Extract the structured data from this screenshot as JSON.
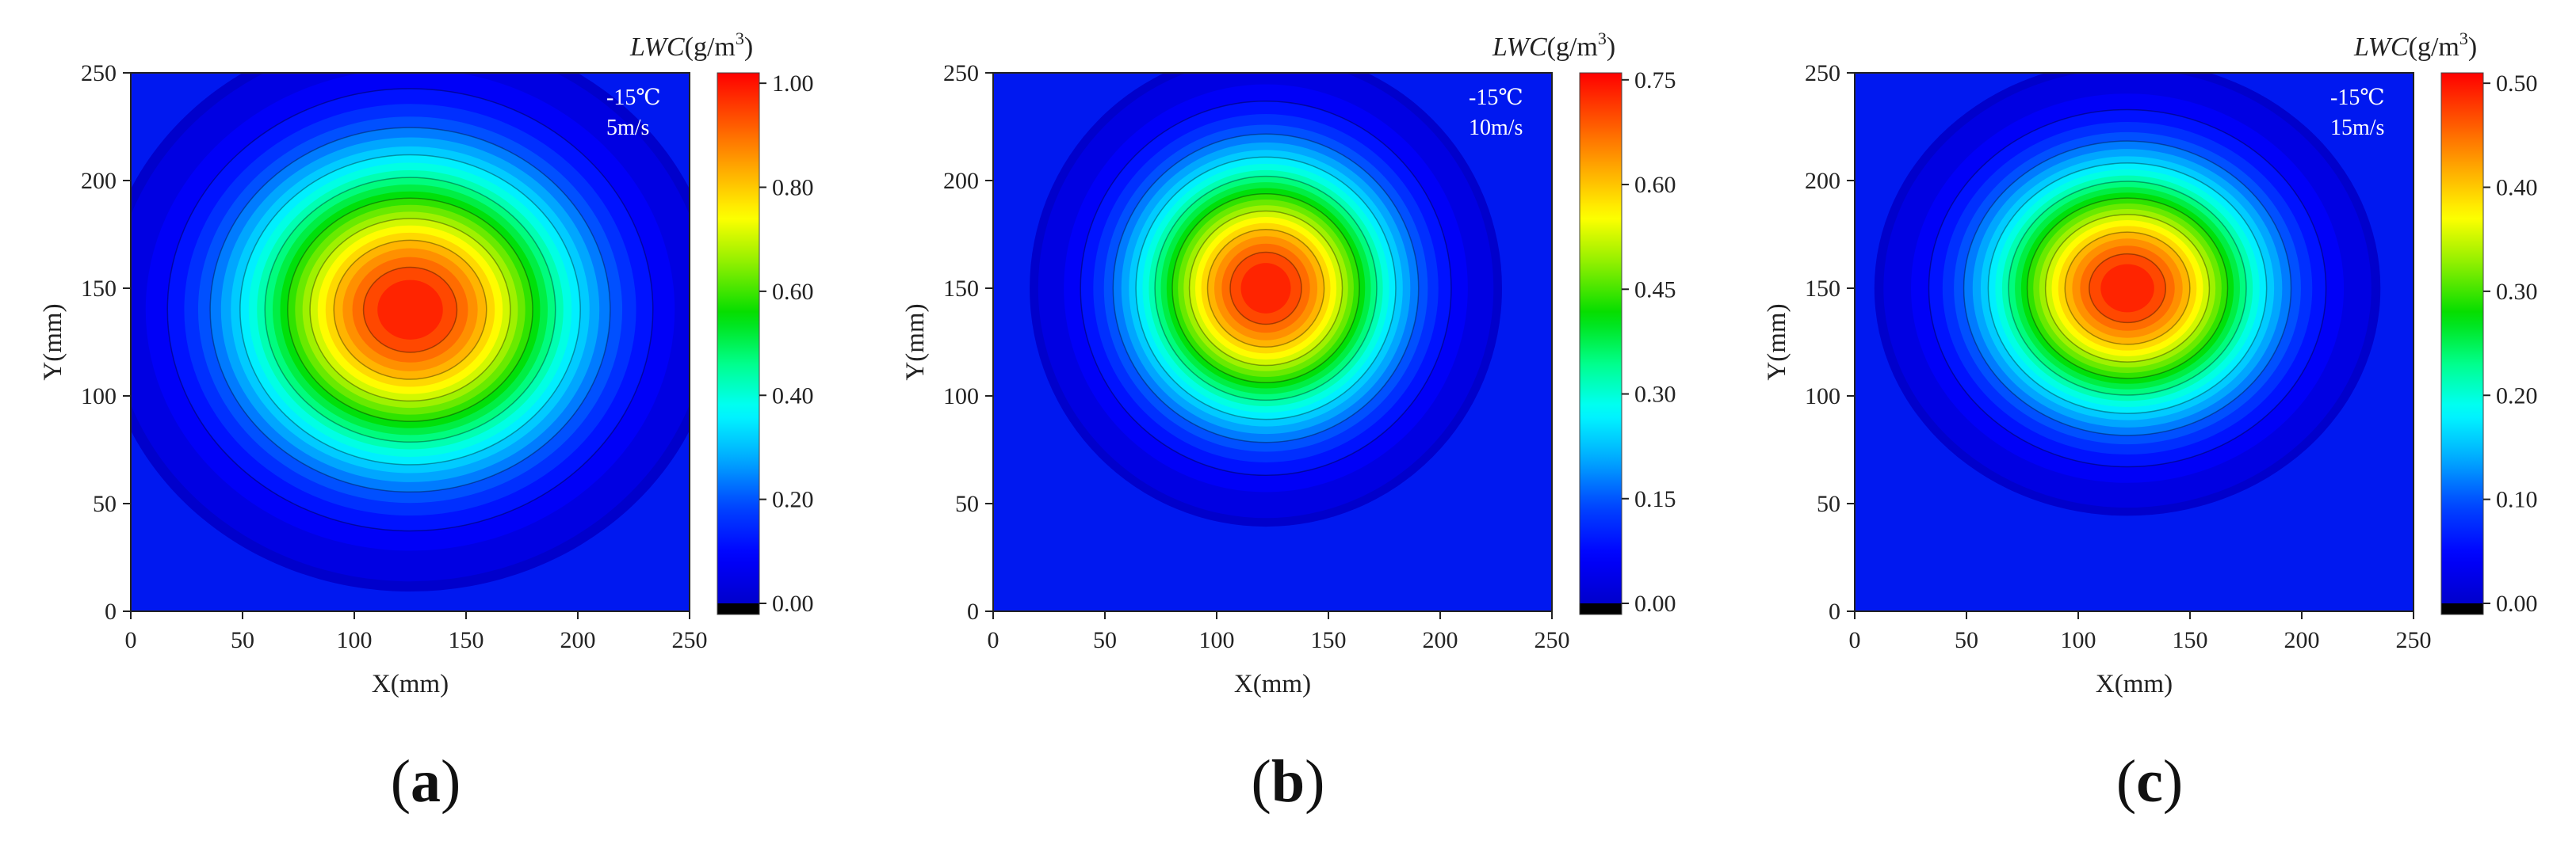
{
  "chart_data": [
    {
      "type": "heatmap",
      "panel_label": "a",
      "xlabel": "X(mm)",
      "ylabel": "Y(mm)",
      "xlim": [
        0,
        250
      ],
      "ylim": [
        0,
        250
      ],
      "xticks": [
        0,
        50,
        100,
        150,
        200,
        250
      ],
      "yticks": [
        0,
        50,
        100,
        150,
        200,
        250
      ],
      "colorbar_title_var": "LWC",
      "colorbar_title_unit": "(g/m",
      "colorbar_title_exp": "3",
      "colorbar_title_close": ")",
      "colorbar_range": [
        0,
        1.02
      ],
      "colorbar_ticks": [
        "0.00",
        "0.20",
        "0.40",
        "0.60",
        "0.80",
        "1.00"
      ],
      "colorbar_tick_values": [
        0,
        0.2,
        0.4,
        0.6,
        0.8,
        1.0
      ],
      "annotation": [
        "-15℃",
        "5m/s"
      ],
      "peak_value": 1.02,
      "peak_center": [
        125,
        140
      ],
      "spread": [
        55,
        52
      ]
    },
    {
      "type": "heatmap",
      "panel_label": "b",
      "xlabel": "X(mm)",
      "ylabel": "Y(mm)",
      "xlim": [
        0,
        250
      ],
      "ylim": [
        0,
        250
      ],
      "xticks": [
        0,
        50,
        100,
        150,
        200,
        250
      ],
      "yticks": [
        0,
        50,
        100,
        150,
        200,
        250
      ],
      "colorbar_title_var": "LWC",
      "colorbar_title_unit": "(g/m",
      "colorbar_title_exp": "3",
      "colorbar_title_close": ")",
      "colorbar_range": [
        0,
        0.76
      ],
      "colorbar_ticks": [
        "0.00",
        "0.15",
        "0.30",
        "0.45",
        "0.60",
        "0.75"
      ],
      "colorbar_tick_values": [
        0,
        0.15,
        0.3,
        0.45,
        0.6,
        0.75
      ],
      "annotation": [
        "-15℃",
        "10m/s"
      ],
      "peak_value": 0.76,
      "peak_center": [
        122,
        150
      ],
      "spread": [
        42,
        44
      ]
    },
    {
      "type": "heatmap",
      "panel_label": "c",
      "xlabel": "X(mm)",
      "ylabel": "Y(mm)",
      "xlim": [
        0,
        250
      ],
      "ylim": [
        0,
        250
      ],
      "xticks": [
        0,
        50,
        100,
        150,
        200,
        250
      ],
      "yticks": [
        0,
        50,
        100,
        150,
        200,
        250
      ],
      "colorbar_title_var": "LWC",
      "colorbar_title_unit": "(g/m",
      "colorbar_title_exp": "3",
      "colorbar_title_close": ")",
      "colorbar_range": [
        0,
        0.51
      ],
      "colorbar_ticks": [
        "0.00",
        "0.10",
        "0.20",
        "0.30",
        "0.40",
        "0.50"
      ],
      "colorbar_tick_values": [
        0,
        0.1,
        0.2,
        0.3,
        0.4,
        0.5
      ],
      "annotation": [
        "-15℃",
        "15m/s"
      ],
      "peak_value": 0.51,
      "peak_center": [
        122,
        150
      ],
      "spread": [
        45,
        42
      ]
    }
  ],
  "colormap": [
    "#0000cc",
    "#0000ff",
    "#0044ff",
    "#00aaff",
    "#00ffff",
    "#00ff88",
    "#00dd00",
    "#88ee00",
    "#ffff00",
    "#ffaa00",
    "#ff5500",
    "#ff0000"
  ],
  "colors": {
    "background": "#0018f0",
    "colorbar_bottom": "#000000"
  }
}
